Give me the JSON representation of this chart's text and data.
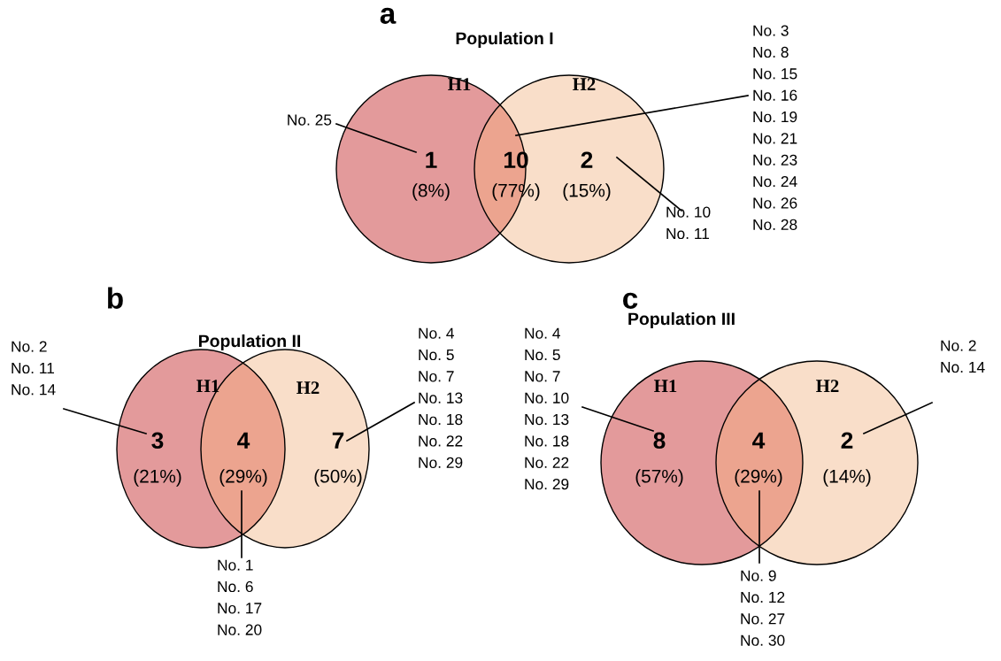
{
  "chart_data": [
    {
      "type": "other",
      "title": "Population I",
      "categories": [
        "(8%)",
        "(77%)",
        "(15%)"
      ],
      "values": [
        1,
        10,
        2
      ],
      "colors": [
        "#e39a9b",
        "#eca48f",
        "#f9dec9"
      ],
      "data_labels": true,
      "annotations": [
        "a",
        "H1",
        "H2",
        {
          "text": "No. 25",
          "x": "(8%)"
        },
        {
          "text": "No. 3\nNo. 8\nNo. 15\nNo. 16\nNo. 19\nNo. 21\nNo. 23\nNo. 24\nNo. 26\nNo. 28",
          "x": "(77%)"
        },
        {
          "text": "No. 10\nNo. 11",
          "x": "(15%)"
        }
      ]
    },
    {
      "type": "other",
      "title": "Population II",
      "categories": [
        "(21%)",
        "(29%)",
        "(50%)"
      ],
      "values": [
        3,
        4,
        7
      ],
      "colors": [
        "#e39a9b",
        "#eca48f",
        "#f9dec9"
      ],
      "data_labels": true,
      "annotations": [
        "b",
        "H1",
        "H2",
        {
          "text": "No. 2\nNo. 11\nNo. 14",
          "x": "(21%)"
        },
        {
          "text": "No. 1\nNo. 6\nNo. 17\nNo. 20",
          "x": "(29%)"
        },
        {
          "text": "No. 4\nNo. 5\nNo. 7\nNo. 13\nNo. 18\nNo. 22\nNo. 29",
          "x": "(50%)"
        }
      ]
    },
    {
      "type": "other",
      "title": "Population III",
      "categories": [
        "(57%)",
        "(29%)",
        "(14%)"
      ],
      "values": [
        8,
        4,
        2
      ],
      "colors": [
        "#e39a9b",
        "#eca48f",
        "#f9dec9"
      ],
      "data_labels": true,
      "annotations": [
        "c",
        "H1",
        "H2",
        {
          "text": "No. 4\nNo. 5\nNo. 7\nNo. 10\nNo. 13\nNo. 18\nNo. 22\nNo. 29",
          "x": "(57%)"
        },
        {
          "text": "No. 9\nNo. 12\nNo. 27\nNo. 30",
          "x": "(29%)"
        },
        {
          "text": "No. 2\nNo. 14",
          "x": "(14%)"
        }
      ]
    }
  ]
}
